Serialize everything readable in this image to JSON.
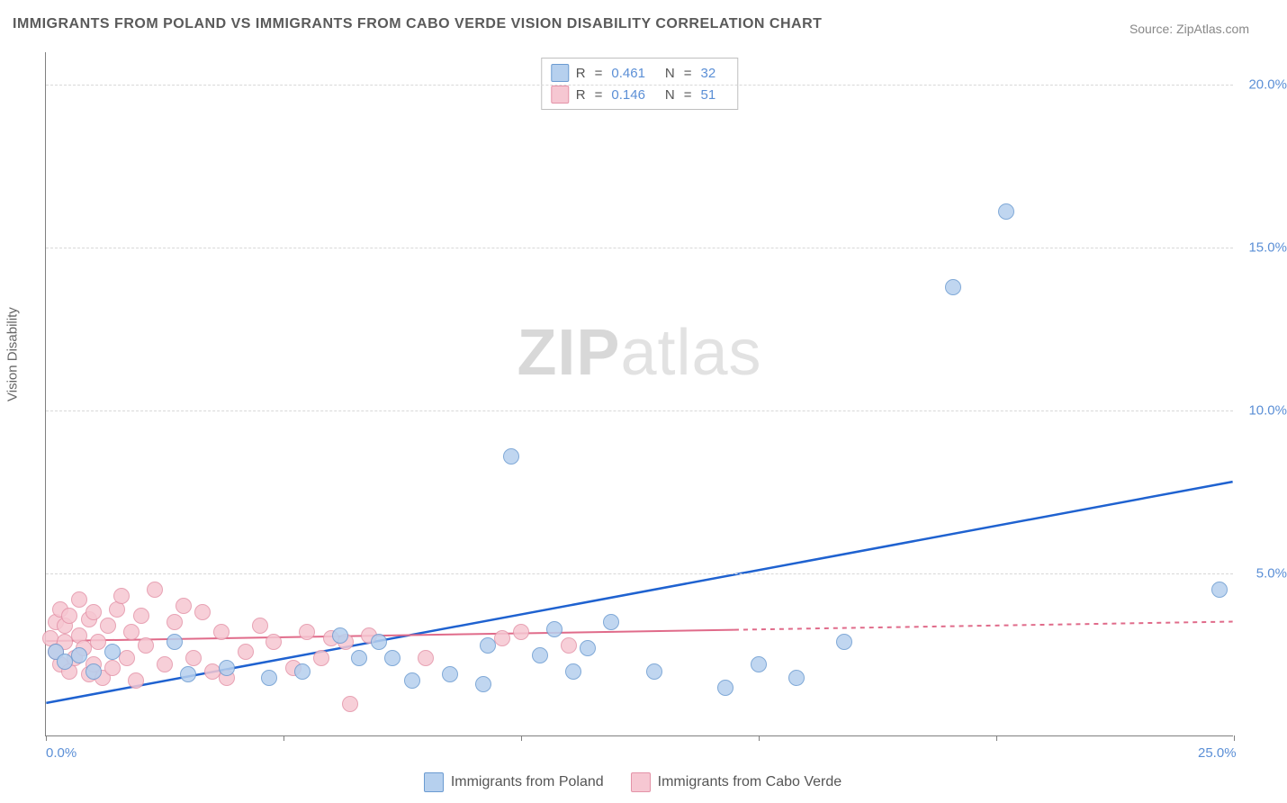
{
  "title": "IMMIGRANTS FROM POLAND VS IMMIGRANTS FROM CABO VERDE VISION DISABILITY CORRELATION CHART",
  "source_label": "Source: ",
  "source_name": "ZipAtlas.com",
  "y_axis_label": "Vision Disability",
  "watermark": {
    "part1": "ZIP",
    "part2": "atlas"
  },
  "chart": {
    "type": "scatter",
    "background_color": "#ffffff",
    "grid_color": "#d8d8d8",
    "axis_color": "#808080",
    "tick_label_color": "#5b8fd6",
    "xlim": [
      0,
      25
    ],
    "ylim": [
      0,
      21
    ],
    "x_ticks_major": [
      0,
      5,
      10,
      15,
      20,
      25
    ],
    "x_ticks_labeled": [
      {
        "pos": 0,
        "label": "0.0%"
      },
      {
        "pos": 25,
        "label": "25.0%"
      }
    ],
    "y_ticks": [
      {
        "pos": 5,
        "label": "5.0%"
      },
      {
        "pos": 10,
        "label": "10.0%"
      },
      {
        "pos": 15,
        "label": "15.0%"
      },
      {
        "pos": 20,
        "label": "20.0%"
      }
    ],
    "point_radius": 9,
    "series": [
      {
        "id": "poland",
        "label": "Immigrants from Poland",
        "fill": "#b6d0ee",
        "stroke": "#6b9bd1",
        "trend": {
          "color": "#1f62d0",
          "width": 2.5,
          "x0": 0,
          "y0": 1.0,
          "x1": 25,
          "y1": 7.8,
          "dash_from_x": null
        },
        "stats": {
          "R": "0.461",
          "N": "32"
        },
        "points": [
          [
            0.2,
            2.6
          ],
          [
            0.4,
            2.3
          ],
          [
            0.7,
            2.5
          ],
          [
            1.0,
            2.0
          ],
          [
            1.4,
            2.6
          ],
          [
            2.7,
            2.9
          ],
          [
            3.0,
            1.9
          ],
          [
            3.8,
            2.1
          ],
          [
            4.7,
            1.8
          ],
          [
            5.4,
            2.0
          ],
          [
            6.2,
            3.1
          ],
          [
            6.6,
            2.4
          ],
          [
            7.0,
            2.9
          ],
          [
            7.3,
            2.4
          ],
          [
            7.7,
            1.7
          ],
          [
            8.5,
            1.9
          ],
          [
            9.2,
            1.6
          ],
          [
            9.3,
            2.8
          ],
          [
            9.8,
            8.6
          ],
          [
            10.4,
            2.5
          ],
          [
            10.7,
            3.3
          ],
          [
            11.1,
            2.0
          ],
          [
            11.4,
            2.7
          ],
          [
            11.9,
            3.5
          ],
          [
            12.8,
            2.0
          ],
          [
            14.3,
            1.5
          ],
          [
            15.0,
            2.2
          ],
          [
            15.8,
            1.8
          ],
          [
            16.8,
            2.9
          ],
          [
            19.1,
            13.8
          ],
          [
            20.2,
            16.1
          ],
          [
            24.7,
            4.5
          ]
        ]
      },
      {
        "id": "cabo_verde",
        "label": "Immigrants from Cabo Verde",
        "fill": "#f6c7d2",
        "stroke": "#e493a8",
        "trend": {
          "color": "#e06b8a",
          "width": 2,
          "x0": 0,
          "y0": 2.9,
          "x1": 25,
          "y1": 3.5,
          "dash_from_x": 14.5
        },
        "stats": {
          "R": "0.146",
          "N": "51"
        },
        "points": [
          [
            0.1,
            3.0
          ],
          [
            0.2,
            2.6
          ],
          [
            0.2,
            3.5
          ],
          [
            0.3,
            2.2
          ],
          [
            0.3,
            3.9
          ],
          [
            0.4,
            2.9
          ],
          [
            0.4,
            3.4
          ],
          [
            0.5,
            2.0
          ],
          [
            0.5,
            3.7
          ],
          [
            0.6,
            2.4
          ],
          [
            0.7,
            3.1
          ],
          [
            0.7,
            4.2
          ],
          [
            0.8,
            2.7
          ],
          [
            0.9,
            1.9
          ],
          [
            0.9,
            3.6
          ],
          [
            1.0,
            2.2
          ],
          [
            1.0,
            3.8
          ],
          [
            1.1,
            2.9
          ],
          [
            1.2,
            1.8
          ],
          [
            1.3,
            3.4
          ],
          [
            1.4,
            2.1
          ],
          [
            1.5,
            3.9
          ],
          [
            1.6,
            4.3
          ],
          [
            1.7,
            2.4
          ],
          [
            1.8,
            3.2
          ],
          [
            1.9,
            1.7
          ],
          [
            2.0,
            3.7
          ],
          [
            2.1,
            2.8
          ],
          [
            2.3,
            4.5
          ],
          [
            2.5,
            2.2
          ],
          [
            2.7,
            3.5
          ],
          [
            2.9,
            4.0
          ],
          [
            3.1,
            2.4
          ],
          [
            3.3,
            3.8
          ],
          [
            3.5,
            2.0
          ],
          [
            3.7,
            3.2
          ],
          [
            3.8,
            1.8
          ],
          [
            4.2,
            2.6
          ],
          [
            4.5,
            3.4
          ],
          [
            4.8,
            2.9
          ],
          [
            5.2,
            2.1
          ],
          [
            5.5,
            3.2
          ],
          [
            5.8,
            2.4
          ],
          [
            6.0,
            3.0
          ],
          [
            6.3,
            2.9
          ],
          [
            6.4,
            1.0
          ],
          [
            6.8,
            3.1
          ],
          [
            8.0,
            2.4
          ],
          [
            9.6,
            3.0
          ],
          [
            10.0,
            3.2
          ],
          [
            11.0,
            2.8
          ]
        ]
      }
    ]
  },
  "legend_top": {
    "label_R": "R",
    "label_N": "N",
    "eq": "="
  },
  "legend_bottom_swatch_border": "#888888"
}
